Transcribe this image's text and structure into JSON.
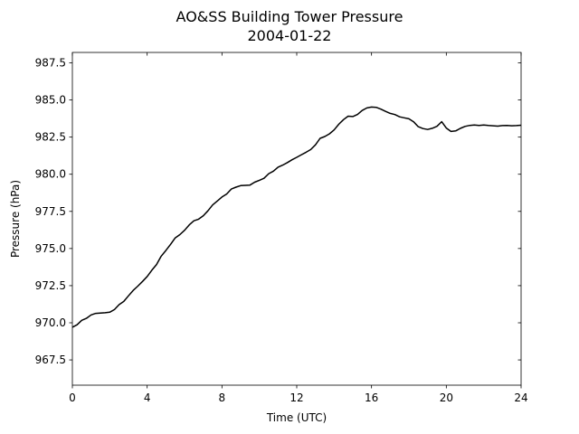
{
  "chart_data": {
    "type": "line",
    "title": "AO&SS Building Tower Pressure",
    "subtitle": "2004-01-22",
    "xlabel": "Time (UTC)",
    "ylabel": "Pressure (hPa)",
    "xlim": [
      0,
      24
    ],
    "ylim": [
      965.8,
      988.2
    ],
    "xticks": [
      0,
      4,
      8,
      12,
      16,
      20,
      24
    ],
    "xtick_labels": [
      "0",
      "4",
      "8",
      "12",
      "16",
      "20",
      "24"
    ],
    "yticks": [
      967.5,
      970.0,
      972.5,
      975.0,
      977.5,
      980.0,
      982.5,
      985.0,
      987.5
    ],
    "ytick_labels": [
      "967.5",
      "970.0",
      "972.5",
      "975.0",
      "977.5",
      "980.0",
      "982.5",
      "985.0",
      "987.5"
    ],
    "grid": false,
    "legend": "none",
    "series": [
      {
        "color": "#000000",
        "x": [
          0,
          0.25,
          0.5,
          0.75,
          1.0,
          1.25,
          1.5,
          1.75,
          2.0,
          2.25,
          2.5,
          2.75,
          3.0,
          3.25,
          3.5,
          3.75,
          4.0,
          4.25,
          4.5,
          4.75,
          5.0,
          5.25,
          5.5,
          5.75,
          6.0,
          6.25,
          6.5,
          6.75,
          7.0,
          7.25,
          7.5,
          7.75,
          8.0,
          8.25,
          8.5,
          8.75,
          9.0,
          9.25,
          9.5,
          9.75,
          10.0,
          10.25,
          10.5,
          10.75,
          11.0,
          11.25,
          11.5,
          11.75,
          12.0,
          12.25,
          12.5,
          12.75,
          13.0,
          13.25,
          13.5,
          13.75,
          14.0,
          14.25,
          14.5,
          14.75,
          15.0,
          15.25,
          15.5,
          15.75,
          16.0,
          16.25,
          16.5,
          16.75,
          17.0,
          17.25,
          17.5,
          17.75,
          18.0,
          18.25,
          18.5,
          18.75,
          19.0,
          19.25,
          19.5,
          19.75,
          20.0,
          20.25,
          20.5,
          20.75,
          21.0,
          21.25,
          21.5,
          21.75,
          22.0,
          22.25,
          22.5,
          22.75,
          23.0,
          23.25,
          23.5,
          23.75,
          24.0
        ],
        "y": [
          969.7,
          969.9,
          970.2,
          970.3,
          970.5,
          970.6,
          970.65,
          970.7,
          970.75,
          970.9,
          971.2,
          971.4,
          971.8,
          972.2,
          972.5,
          972.8,
          973.1,
          973.5,
          973.9,
          974.5,
          974.9,
          975.3,
          975.7,
          975.9,
          976.2,
          976.6,
          976.9,
          977.0,
          977.2,
          977.5,
          977.9,
          978.2,
          978.5,
          978.7,
          979.0,
          979.1,
          979.2,
          979.25,
          979.3,
          979.5,
          979.6,
          979.7,
          980.0,
          980.2,
          980.5,
          980.65,
          980.8,
          980.95,
          981.1,
          981.3,
          981.5,
          981.7,
          982.0,
          982.4,
          982.5,
          982.7,
          983.0,
          983.4,
          983.7,
          983.9,
          983.85,
          984.0,
          984.3,
          984.5,
          984.55,
          984.5,
          984.35,
          984.2,
          984.1,
          984.05,
          983.9,
          983.8,
          983.7,
          983.5,
          983.2,
          983.1,
          983.05,
          983.1,
          983.2,
          983.5,
          983.1,
          982.9,
          982.95,
          983.1,
          983.2,
          983.25,
          983.3,
          983.3,
          983.35,
          983.3,
          983.25,
          983.2,
          983.25,
          983.3,
          983.3,
          983.3,
          983.3
        ]
      }
    ]
  }
}
